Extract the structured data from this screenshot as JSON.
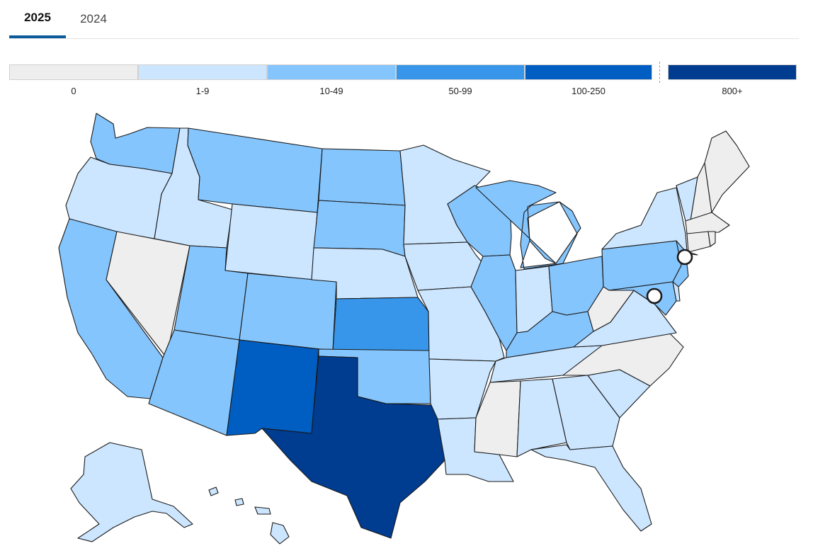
{
  "tabs": [
    {
      "label": "2025",
      "active": true
    },
    {
      "label": "2024",
      "active": false
    }
  ],
  "legend": [
    {
      "label": "0",
      "color": "#eeeeee"
    },
    {
      "label": "1-9",
      "color": "#cce6ff"
    },
    {
      "label": "10-49",
      "color": "#85c5fd"
    },
    {
      "label": "50-99",
      "color": "#3796ea"
    },
    {
      "label": "100-250",
      "color": "#005dc1"
    },
    {
      "label": "800+",
      "color": "#003c8f"
    }
  ],
  "states": {
    "WA": "#85c5fd",
    "OR": "#cce6ff",
    "CA": "#85c5fd",
    "NV": "#eeeeee",
    "ID": "#cce6ff",
    "MT": "#85c5fd",
    "WY": "#cce6ff",
    "UT": "#85c5fd",
    "AZ": "#85c5fd",
    "CO": "#85c5fd",
    "NM": "#005dc1",
    "ND": "#85c5fd",
    "SD": "#85c5fd",
    "NE": "#cce6ff",
    "KS": "#3796ea",
    "OK": "#85c5fd",
    "TX": "#003c8f",
    "MN": "#cce6ff",
    "IA": "#cce6ff",
    "MO": "#cce6ff",
    "AR": "#cce6ff",
    "LA": "#cce6ff",
    "WI": "#85c5fd",
    "IL": "#85c5fd",
    "MI": "#85c5fd",
    "IN": "#cce6ff",
    "OH": "#85c5fd",
    "KY": "#85c5fd",
    "TN": "#cce6ff",
    "MS": "#eeeeee",
    "AL": "#cce6ff",
    "GA": "#cce6ff",
    "FL": "#cce6ff",
    "SC": "#cce6ff",
    "NC": "#eeeeee",
    "VA": "#cce6ff",
    "WV": "#eeeeee",
    "PA": "#85c5fd",
    "NY": "#cce6ff",
    "NJ": "#85c5fd",
    "MD": "#85c5fd",
    "DE": "#cce6ff",
    "VT": "#cce6ff",
    "NH": "#eeeeee",
    "ME": "#eeeeee",
    "MA": "#eeeeee",
    "CT": "#eeeeee",
    "RI": "#eeeeee",
    "AK": "#cce6ff",
    "HI": "#cce6ff"
  }
}
